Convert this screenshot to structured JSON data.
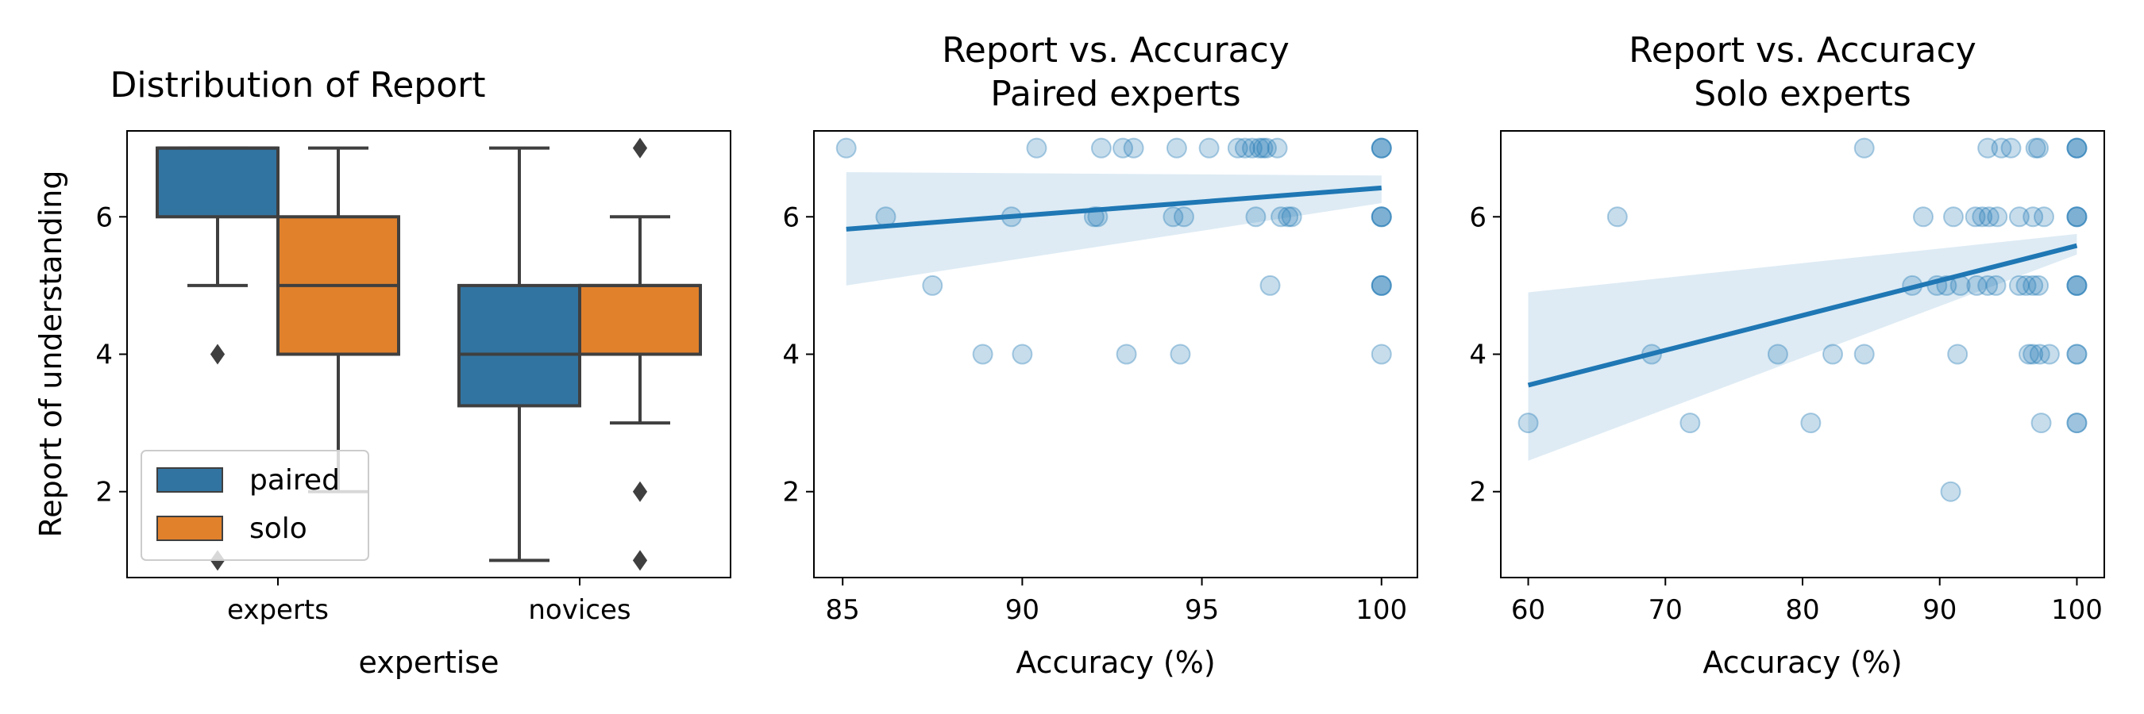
{
  "chart_data": [
    {
      "type": "box",
      "title": [
        "Distribution of Report"
      ],
      "xlabel": "expertise",
      "ylabel": "Report of understanding",
      "ylim": [
        0.75,
        7.25
      ],
      "yticks": [
        2,
        4,
        6
      ],
      "categories": [
        "experts",
        "novices"
      ],
      "legend": {
        "placement": "lower-left",
        "entries": [
          "paired",
          "solo"
        ]
      },
      "colors": {
        "paired": "#3274a1",
        "solo": "#e1812c",
        "lines": "#3f3f3f"
      },
      "boxes": [
        {
          "category": "experts",
          "group": "paired",
          "min": 5,
          "q1": 6,
          "median": 7,
          "q3": 7,
          "max": 7,
          "outliers": [
            4,
            1
          ]
        },
        {
          "category": "experts",
          "group": "solo",
          "min": 2,
          "q1": 4,
          "median": 5,
          "q3": 6,
          "max": 7,
          "outliers": []
        },
        {
          "category": "novices",
          "group": "paired",
          "min": 1,
          "q1": 3.25,
          "median": 4,
          "q3": 5,
          "max": 7,
          "outliers": []
        },
        {
          "category": "novices",
          "group": "solo",
          "min": 3,
          "q1": 4,
          "median": 5,
          "q3": 5,
          "max": 6,
          "outliers": [
            7,
            2,
            1
          ]
        }
      ]
    },
    {
      "type": "scatter",
      "title": [
        "Report vs. Accuracy",
        "Paired experts"
      ],
      "xlabel": "Accuracy (%)",
      "ylabel": "",
      "xlim": [
        84.2,
        101
      ],
      "ylim": [
        0.75,
        7.25
      ],
      "xticks": [
        85,
        90,
        95,
        100
      ],
      "yticks": [
        2,
        4,
        6
      ],
      "color": "#1f77b4",
      "points": [
        [
          85.1,
          7
        ],
        [
          90.4,
          7
        ],
        [
          92.2,
          7
        ],
        [
          92.8,
          7
        ],
        [
          93.1,
          7
        ],
        [
          94.3,
          7
        ],
        [
          95.2,
          7
        ],
        [
          96.0,
          7
        ],
        [
          96.2,
          7
        ],
        [
          96.4,
          7
        ],
        [
          96.6,
          7
        ],
        [
          96.7,
          7
        ],
        [
          96.8,
          7
        ],
        [
          97.1,
          7
        ],
        [
          100,
          7
        ],
        [
          100,
          7
        ],
        [
          100,
          7
        ],
        [
          86.2,
          6
        ],
        [
          89.7,
          6
        ],
        [
          92.0,
          6
        ],
        [
          92.1,
          6
        ],
        [
          94.2,
          6
        ],
        [
          94.5,
          6
        ],
        [
          96.5,
          6
        ],
        [
          97.2,
          6
        ],
        [
          97.4,
          6
        ],
        [
          97.5,
          6
        ],
        [
          100,
          6
        ],
        [
          100,
          6
        ],
        [
          100,
          6
        ],
        [
          87.5,
          5
        ],
        [
          96.9,
          5
        ],
        [
          100,
          5
        ],
        [
          100,
          5
        ],
        [
          100,
          5
        ],
        [
          88.9,
          4
        ],
        [
          90.0,
          4
        ],
        [
          92.9,
          4
        ],
        [
          94.4,
          4
        ],
        [
          100,
          4
        ]
      ],
      "regression": {
        "x": [
          85.1,
          100
        ],
        "y": [
          5.82,
          6.42
        ],
        "ci_lower": [
          5.0,
          6.2
        ],
        "ci_upper": [
          6.65,
          6.6
        ]
      }
    },
    {
      "type": "scatter",
      "title": [
        "Report vs. Accuracy",
        "Solo experts"
      ],
      "xlabel": "Accuracy (%)",
      "ylabel": "",
      "xlim": [
        58,
        102
      ],
      "ylim": [
        0.75,
        7.25
      ],
      "xticks": [
        60,
        70,
        80,
        90,
        100
      ],
      "yticks": [
        2,
        4,
        6
      ],
      "color": "#1f77b4",
      "points": [
        [
          84.5,
          7
        ],
        [
          93.5,
          7
        ],
        [
          94.5,
          7
        ],
        [
          95.2,
          7
        ],
        [
          97.0,
          7
        ],
        [
          97.2,
          7
        ],
        [
          100,
          7
        ],
        [
          100,
          7
        ],
        [
          100,
          7
        ],
        [
          66.5,
          6
        ],
        [
          88.8,
          6
        ],
        [
          91.0,
          6
        ],
        [
          92.6,
          6
        ],
        [
          93.1,
          6
        ],
        [
          93.6,
          6
        ],
        [
          94.2,
          6
        ],
        [
          95.8,
          6
        ],
        [
          96.8,
          6
        ],
        [
          97.6,
          6
        ],
        [
          100,
          6
        ],
        [
          100,
          6
        ],
        [
          100,
          6
        ],
        [
          88.0,
          5
        ],
        [
          89.8,
          5
        ],
        [
          90.5,
          5
        ],
        [
          91.5,
          5
        ],
        [
          92.7,
          5
        ],
        [
          93.5,
          5
        ],
        [
          94.1,
          5
        ],
        [
          95.8,
          5
        ],
        [
          96.3,
          5
        ],
        [
          96.8,
          5
        ],
        [
          97.2,
          5
        ],
        [
          100,
          5
        ],
        [
          100,
          5
        ],
        [
          100,
          5
        ],
        [
          69.0,
          4
        ],
        [
          78.2,
          4
        ],
        [
          82.2,
          4
        ],
        [
          84.5,
          4
        ],
        [
          91.3,
          4
        ],
        [
          96.5,
          4
        ],
        [
          96.8,
          4
        ],
        [
          97.3,
          4
        ],
        [
          98.0,
          4
        ],
        [
          100,
          4
        ],
        [
          100,
          4
        ],
        [
          60.0,
          3
        ],
        [
          71.8,
          3
        ],
        [
          80.6,
          3
        ],
        [
          97.4,
          3
        ],
        [
          100,
          3
        ],
        [
          100,
          3
        ],
        [
          90.8,
          2
        ]
      ],
      "regression": {
        "x": [
          60,
          100
        ],
        "y": [
          3.55,
          5.58
        ],
        "ci_lower": [
          2.45,
          5.45
        ],
        "ci_upper": [
          4.9,
          5.75
        ]
      }
    }
  ]
}
